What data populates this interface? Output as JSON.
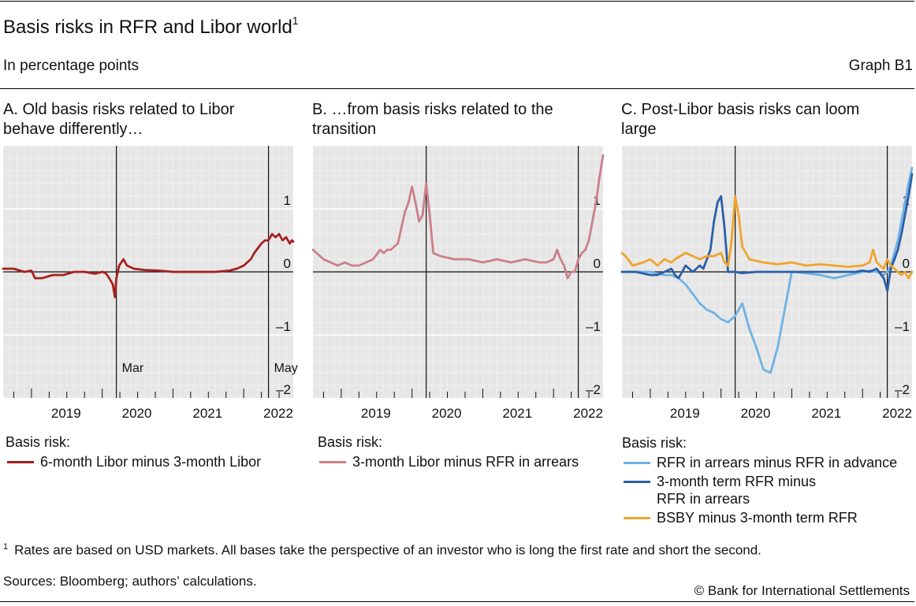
{
  "header": {
    "title": "Basis risks in RFR and Libor world",
    "title_sup": "1",
    "units": "In percentage points",
    "graph_id": "Graph B1"
  },
  "footer": {
    "footnote_marker": "1",
    "footnote": "Rates are based on USD markets. All bases take the perspective of an investor who is long the first rate and short the second.",
    "sources": "Sources: Bloomberg; authors’ calculations.",
    "copyright": "© Bank for International Settlements"
  },
  "chart_data": [
    {
      "type": "line",
      "panel": "A",
      "title": "A. Old basis risks related to Libor behave differently…",
      "title_lines": [
        "A. Old basis risks related to Libor",
        "behave differently…"
      ],
      "ylim": [
        -2,
        2
      ],
      "yticks": [
        1,
        0,
        -1,
        -2
      ],
      "ytick_labels": [
        "1",
        "0",
        "–1",
        "–2"
      ],
      "xlim": [
        2018.6,
        2022.7
      ],
      "xticks": [
        2019,
        2020,
        2021,
        2022
      ],
      "xtick_labels": [
        "2019",
        "2020",
        "2021",
        "2022"
      ],
      "vlines": [
        {
          "x": 2020.2,
          "label": "Mar"
        },
        {
          "x": 2022.35,
          "label": "May"
        }
      ],
      "legend_title": "Basis risk:",
      "series": [
        {
          "name": "6-month Libor minus 3-month Libor",
          "color": "#a5201f",
          "x": [
            2018.6,
            2018.75,
            2018.9,
            2019.0,
            2019.05,
            2019.15,
            2019.3,
            2019.45,
            2019.6,
            2019.75,
            2019.9,
            2020.0,
            2020.05,
            2020.1,
            2020.15,
            2020.18,
            2020.2,
            2020.24,
            2020.3,
            2020.35,
            2020.45,
            2020.6,
            2020.8,
            2021.0,
            2021.2,
            2021.4,
            2021.6,
            2021.8,
            2021.9,
            2022.0,
            2022.1,
            2022.15,
            2022.25,
            2022.3,
            2022.35,
            2022.4,
            2022.45,
            2022.5,
            2022.55,
            2022.6,
            2022.65,
            2022.68,
            2022.7
          ],
          "y": [
            0.05,
            0.05,
            0.0,
            0.02,
            -0.1,
            -0.1,
            -0.05,
            -0.05,
            0.0,
            0.0,
            -0.03,
            0.0,
            -0.02,
            -0.1,
            -0.2,
            -0.4,
            -0.1,
            0.1,
            0.2,
            0.1,
            0.05,
            0.03,
            0.02,
            0.0,
            0.0,
            0.0,
            0.0,
            0.02,
            0.05,
            0.1,
            0.2,
            0.3,
            0.45,
            0.5,
            0.5,
            0.6,
            0.55,
            0.6,
            0.5,
            0.55,
            0.45,
            0.5,
            0.48
          ]
        }
      ]
    },
    {
      "type": "line",
      "panel": "B",
      "title": "B. …from basis risks related to the transition",
      "title_lines": [
        "B. …from basis risks related to the",
        "transition"
      ],
      "ylim": [
        -2,
        2
      ],
      "yticks": [
        1,
        0,
        -1,
        -2
      ],
      "ytick_labels": [
        "1",
        "0",
        "–1",
        "–2"
      ],
      "xlim": [
        2018.6,
        2022.7
      ],
      "xticks": [
        2019,
        2020,
        2021,
        2022
      ],
      "xtick_labels": [
        "2019",
        "2020",
        "2021",
        "2022"
      ],
      "vlines": [
        {
          "x": 2020.2,
          "label": ""
        },
        {
          "x": 2022.35,
          "label": ""
        }
      ],
      "legend_title": "Basis risk:",
      "series": [
        {
          "name": "3-month Libor minus RFR in arrears",
          "color": "#cc7f89",
          "x": [
            2018.6,
            2018.65,
            2018.75,
            2018.85,
            2018.95,
            2019.05,
            2019.15,
            2019.25,
            2019.35,
            2019.45,
            2019.55,
            2019.6,
            2019.65,
            2019.7,
            2019.75,
            2019.8,
            2019.85,
            2019.9,
            2019.95,
            2020.0,
            2020.05,
            2020.1,
            2020.15,
            2020.2,
            2020.25,
            2020.3,
            2020.4,
            2020.6,
            2020.8,
            2021.0,
            2021.2,
            2021.4,
            2021.6,
            2021.8,
            2021.9,
            2022.0,
            2022.05,
            2022.1,
            2022.15,
            2022.2,
            2022.25,
            2022.3,
            2022.35,
            2022.4,
            2022.45,
            2022.5,
            2022.55,
            2022.6,
            2022.65,
            2022.7
          ],
          "y": [
            0.35,
            0.3,
            0.2,
            0.15,
            0.1,
            0.15,
            0.1,
            0.1,
            0.15,
            0.2,
            0.35,
            0.3,
            0.35,
            0.35,
            0.4,
            0.45,
            0.7,
            0.95,
            1.1,
            1.35,
            1.1,
            0.8,
            0.9,
            1.4,
            0.9,
            0.3,
            0.25,
            0.2,
            0.2,
            0.15,
            0.2,
            0.15,
            0.2,
            0.15,
            0.15,
            0.2,
            0.35,
            0.2,
            0.1,
            -0.1,
            0.0,
            0.0,
            0.2,
            0.3,
            0.35,
            0.5,
            0.8,
            1.1,
            1.5,
            1.85
          ]
        }
      ]
    },
    {
      "type": "line",
      "panel": "C",
      "title": "C. Post-Libor basis risks can loom large",
      "title_lines": [
        "C. Post-Libor basis risks can loom",
        "large"
      ],
      "ylim": [
        -2,
        2
      ],
      "yticks": [
        1,
        0,
        -1,
        -2
      ],
      "ytick_labels": [
        "1",
        "0",
        "–1",
        "–2"
      ],
      "xlim": [
        2018.6,
        2022.7
      ],
      "xticks": [
        2019,
        2020,
        2021,
        2022
      ],
      "xtick_labels": [
        "2019",
        "2020",
        "2021",
        "2022"
      ],
      "vlines": [
        {
          "x": 2020.2,
          "label": ""
        },
        {
          "x": 2022.35,
          "label": ""
        }
      ],
      "legend_title": "Basis risk:",
      "legend_labels": [
        [
          "RFR in arrears minus RFR in advance"
        ],
        [
          "3-month term RFR minus",
          "RFR in arrears"
        ],
        [
          "BSBY minus 3-month term RFR"
        ]
      ],
      "series": [
        {
          "name": "RFR in arrears minus RFR in advance",
          "color": "#6fb2e4",
          "x": [
            2018.6,
            2018.8,
            2019.0,
            2019.2,
            2019.3,
            2019.4,
            2019.5,
            2019.6,
            2019.7,
            2019.8,
            2019.9,
            2020.0,
            2020.1,
            2020.2,
            2020.3,
            2020.4,
            2020.5,
            2020.6,
            2020.7,
            2020.8,
            2020.9,
            2021.0,
            2021.2,
            2021.4,
            2021.6,
            2021.8,
            2022.0,
            2022.1,
            2022.2,
            2022.3,
            2022.35,
            2022.4,
            2022.45,
            2022.5,
            2022.55,
            2022.6,
            2022.65,
            2022.7
          ],
          "y": [
            0.0,
            0.0,
            0.0,
            -0.05,
            -0.05,
            -0.1,
            -0.2,
            -0.35,
            -0.5,
            -0.6,
            -0.65,
            -0.75,
            -0.8,
            -0.7,
            -0.5,
            -0.9,
            -1.2,
            -1.55,
            -1.6,
            -1.2,
            -0.6,
            0.0,
            -0.02,
            -0.05,
            -0.1,
            -0.05,
            0.0,
            0.02,
            0.0,
            -0.05,
            0.0,
            0.1,
            0.3,
            0.5,
            0.8,
            1.1,
            1.4,
            1.65
          ]
        },
        {
          "name": "3-month term RFR minus RFR in arrears",
          "color": "#2b5fa6",
          "x": [
            2018.6,
            2018.8,
            2019.0,
            2019.1,
            2019.2,
            2019.3,
            2019.35,
            2019.4,
            2019.5,
            2019.6,
            2019.7,
            2019.75,
            2019.8,
            2019.85,
            2019.9,
            2019.95,
            2020.0,
            2020.05,
            2020.1,
            2020.2,
            2020.3,
            2020.5,
            2020.8,
            2021.0,
            2021.3,
            2021.6,
            2021.9,
            2022.0,
            2022.1,
            2022.2,
            2022.3,
            2022.35,
            2022.4,
            2022.45,
            2022.5,
            2022.55,
            2022.6,
            2022.65,
            2022.7
          ],
          "y": [
            0.0,
            0.0,
            -0.05,
            -0.05,
            0.0,
            0.05,
            -0.05,
            -0.1,
            0.1,
            0.0,
            0.1,
            0.05,
            0.2,
            0.35,
            0.8,
            1.1,
            1.2,
            0.7,
            0.0,
            0.0,
            -0.02,
            0.0,
            0.0,
            0.0,
            0.0,
            0.0,
            0.0,
            0.02,
            0.0,
            0.05,
            -0.1,
            -0.3,
            0.05,
            0.2,
            0.35,
            0.6,
            0.9,
            1.2,
            1.55
          ]
        },
        {
          "name": "BSBY minus 3-month term RFR",
          "color": "#f0a42d",
          "x": [
            2018.6,
            2018.65,
            2018.75,
            2018.9,
            2019.0,
            2019.1,
            2019.2,
            2019.3,
            2019.35,
            2019.5,
            2019.6,
            2019.7,
            2019.8,
            2019.9,
            2020.0,
            2020.05,
            2020.1,
            2020.15,
            2020.2,
            2020.25,
            2020.3,
            2020.4,
            2020.6,
            2020.8,
            2021.0,
            2021.2,
            2021.4,
            2021.6,
            2021.8,
            2022.0,
            2022.1,
            2022.15,
            2022.2,
            2022.3,
            2022.35,
            2022.4,
            2022.45,
            2022.5,
            2022.55,
            2022.6,
            2022.65,
            2022.7
          ],
          "y": [
            0.3,
            0.25,
            0.1,
            0.15,
            0.2,
            0.1,
            0.2,
            0.15,
            0.2,
            0.3,
            0.25,
            0.2,
            0.25,
            0.25,
            0.3,
            0.15,
            0.1,
            0.5,
            1.2,
            0.9,
            0.4,
            0.2,
            0.15,
            0.12,
            0.15,
            0.1,
            0.12,
            0.1,
            0.08,
            0.1,
            0.15,
            0.35,
            0.15,
            0.05,
            0.2,
            0.1,
            0.05,
            0.0,
            -0.05,
            0.0,
            -0.1,
            0.0
          ]
        }
      ]
    }
  ]
}
